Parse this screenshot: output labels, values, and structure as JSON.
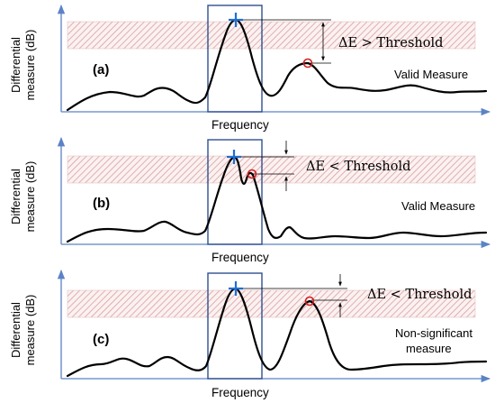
{
  "figure": {
    "y_axis_label_line1": "Differential",
    "y_axis_label_line2": "measure (dB)",
    "x_axis_label": "Frequency",
    "colors": {
      "axis": "#5b83c6",
      "threshold_band": "#d9a0a0",
      "analysis_window": "#2f4f8f",
      "maximum_marker": "#1c6fd6",
      "secondary_peak_marker": "#d42020",
      "curve": "#000000"
    },
    "markers": {
      "maximum": "plus-sign",
      "secondary_peak": "circle"
    }
  },
  "panels": [
    {
      "tag": "(a)",
      "condition": "ΔE > Threshold",
      "result": "Valid Measure",
      "result_line2": ""
    },
    {
      "tag": "(b)",
      "condition": "ΔE < Threshold",
      "result": "Valid Measure",
      "result_line2": ""
    },
    {
      "tag": "(c)",
      "condition": "ΔE < Threshold",
      "result": "Non-significant",
      "result_line2": "measure"
    }
  ]
}
